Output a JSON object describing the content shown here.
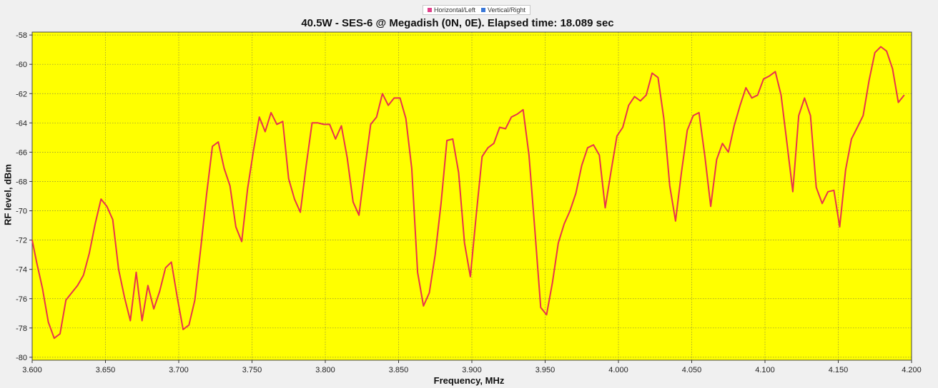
{
  "legend": [
    {
      "label": "Horizontal/Left",
      "color": "#e0408a"
    },
    {
      "label": "Vertical/Right",
      "color": "#3a78d8"
    }
  ],
  "colors": {
    "plot_background": "#ffff00",
    "series_line": "#e8344c",
    "grid": "#8a8a40",
    "window_background": "#f0f0f0"
  },
  "chart_data": {
    "type": "line",
    "title": "40.5W - SES-6 @ Megadish (0N, 0E). Elapsed time: 18.089 sec",
    "xlabel": "Frequency, MHz",
    "ylabel": "RF level, dBm",
    "xlim": [
      3.6,
      4.2
    ],
    "ylim": [
      -80.2,
      -57.8
    ],
    "x_ticks": [
      3.6,
      3.65,
      3.7,
      3.75,
      3.8,
      3.85,
      3.9,
      3.95,
      4.0,
      4.05,
      4.1,
      4.15,
      4.2
    ],
    "x_tick_labels": [
      "3.600",
      "3.650",
      "3.700",
      "3.750",
      "3.800",
      "3.850",
      "3.900",
      "3.950",
      "4.000",
      "4.050",
      "4.100",
      "4.150",
      "4.200"
    ],
    "y_ticks": [
      -80,
      -78,
      -76,
      -74,
      -72,
      -70,
      -68,
      -66,
      -64,
      -62,
      -60,
      -58
    ],
    "y_tick_labels": [
      "-80",
      "-78",
      "-76",
      "-74",
      "-72",
      "-70",
      "-68",
      "-66",
      "-64",
      "-62",
      "-60",
      "-58"
    ],
    "grid": true,
    "legend_position": "top-center",
    "series": [
      {
        "name": "Horizontal/Left",
        "x": [
          3.6,
          3.603,
          3.607,
          3.611,
          3.615,
          3.619,
          3.623,
          3.627,
          3.631,
          3.635,
          3.639,
          3.643,
          3.647,
          3.651,
          3.655,
          3.659,
          3.663,
          3.667,
          3.671,
          3.675,
          3.679,
          3.683,
          3.687,
          3.691,
          3.695,
          3.699,
          3.703,
          3.707,
          3.711,
          3.715,
          3.719,
          3.723,
          3.727,
          3.731,
          3.735,
          3.739,
          3.743,
          3.747,
          3.751,
          3.755,
          3.759,
          3.763,
          3.767,
          3.771,
          3.775,
          3.779,
          3.783,
          3.787,
          3.791,
          3.795,
          3.799,
          3.803,
          3.807,
          3.811,
          3.815,
          3.819,
          3.823,
          3.827,
          3.831,
          3.835,
          3.839,
          3.843,
          3.847,
          3.851,
          3.855,
          3.859,
          3.863,
          3.867,
          3.871,
          3.875,
          3.879,
          3.883,
          3.887,
          3.891,
          3.895,
          3.899,
          3.903,
          3.907,
          3.911,
          3.915,
          3.919,
          3.923,
          3.927,
          3.931,
          3.935,
          3.939,
          3.943,
          3.947,
          3.951,
          3.955,
          3.959,
          3.963,
          3.967,
          3.971,
          3.975,
          3.979,
          3.983,
          3.987,
          3.991,
          3.995,
          3.999,
          4.003,
          4.007,
          4.011,
          4.015,
          4.019,
          4.023,
          4.027,
          4.031,
          4.035,
          4.039,
          4.043,
          4.047,
          4.051,
          4.055,
          4.059,
          4.063,
          4.067,
          4.071,
          4.075,
          4.079,
          4.083,
          4.087,
          4.091,
          4.095,
          4.099,
          4.103,
          4.107,
          4.111,
          4.115,
          4.119,
          4.123,
          4.127,
          4.131,
          4.135,
          4.139,
          4.143,
          4.147,
          4.151,
          4.155,
          4.159,
          4.163,
          4.167,
          4.171,
          4.175,
          4.179,
          4.183,
          4.187,
          4.191,
          4.195
        ],
        "values": [
          -72.0,
          -73.5,
          -75.3,
          -77.6,
          -78.7,
          -78.4,
          -76.1,
          -75.6,
          -75.1,
          -74.4,
          -72.9,
          -70.9,
          -69.2,
          -69.7,
          -70.6,
          -74.0,
          -75.9,
          -77.5,
          -74.2,
          -77.5,
          -75.1,
          -76.7,
          -75.5,
          -73.9,
          -73.5,
          -75.9,
          -78.1,
          -77.8,
          -76.1,
          -72.6,
          -68.9,
          -65.6,
          -65.3,
          -67.1,
          -68.3,
          -71.1,
          -72.1,
          -68.5,
          -65.9,
          -63.6,
          -64.6,
          -63.3,
          -64.1,
          -63.9,
          -67.8,
          -69.2,
          -70.1,
          -66.9,
          -64.0,
          -64.0,
          -64.1,
          -64.1,
          -65.1,
          -64.2,
          -66.4,
          -69.4,
          -70.3,
          -67.1,
          -64.1,
          -63.6,
          -62.0,
          -62.8,
          -62.3,
          -62.3,
          -63.7,
          -67.1,
          -74.2,
          -76.5,
          -75.6,
          -73.0,
          -69.5,
          -65.2,
          -65.1,
          -67.4,
          -72.2,
          -74.5,
          -70.3,
          -66.3,
          -65.7,
          -65.4,
          -64.3,
          -64.4,
          -63.6,
          -63.4,
          -63.1,
          -66.2,
          -71.3,
          -76.6,
          -77.1,
          -74.9,
          -72.2,
          -70.9,
          -70.0,
          -68.8,
          -66.9,
          -65.7,
          -65.5,
          -66.2,
          -69.8,
          -67.3,
          -64.9,
          -64.3,
          -62.8,
          -62.2,
          -62.5,
          -62.1,
          -60.6,
          -60.9,
          -63.7,
          -68.3,
          -70.7,
          -67.4,
          -64.5,
          -63.5,
          -63.3,
          -66.3,
          -69.7,
          -66.5,
          -65.4,
          -66.0,
          -64.2,
          -62.8,
          -61.6,
          -62.3,
          -62.1,
          -61.0,
          -60.8,
          -60.5,
          -62.1,
          -65.4,
          -68.7,
          -63.5,
          -62.3,
          -63.5,
          -68.4,
          -69.5,
          -68.7,
          -68.6,
          -71.1,
          -67.2,
          -65.1,
          -64.3,
          -63.5,
          -61.1,
          -59.2,
          -58.8,
          -59.1,
          -60.3,
          -62.6,
          -62.1
        ]
      }
    ]
  }
}
